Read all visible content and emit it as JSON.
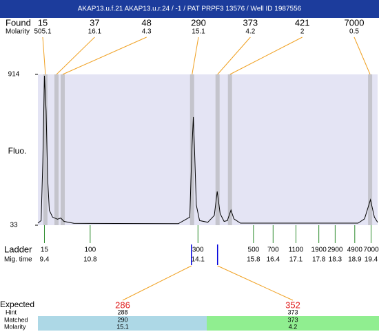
{
  "header": {
    "title": "AKAP13.u.f.21  AKAP13.u.r.24 / -1 / PAT PRPF3 13576 / Well ID 1987556"
  },
  "found": {
    "label": "Found",
    "molarity_label": "Molarity",
    "sizes": [
      15,
      37,
      48,
      290,
      373,
      421,
      7000
    ],
    "molarity": [
      505.1,
      16.1,
      4.3,
      15.1,
      4.2,
      2,
      0.5
    ],
    "times": [
      9.43,
      9.77,
      9.96,
      13.92,
      14.7,
      15.08,
      19.37
    ]
  },
  "chart_data": {
    "type": "line",
    "ylabel": "Fluo.",
    "color": "#000000",
    "band_color": "#e4e4f4",
    "ylim": [
      33,
      914
    ],
    "yticks": [
      33,
      914
    ],
    "xlim": [
      9.2,
      19.6
    ],
    "x": [
      9.2,
      9.3,
      9.35,
      9.4,
      9.45,
      9.5,
      9.55,
      9.65,
      9.8,
      9.9,
      10.0,
      10.3,
      13.5,
      13.85,
      13.92,
      13.96,
      14.0,
      14.05,
      14.15,
      14.4,
      14.6,
      14.69,
      14.78,
      14.9,
      15.0,
      15.11,
      15.2,
      15.4,
      19.0,
      19.2,
      19.38,
      19.5,
      19.6
    ],
    "values": [
      45,
      60,
      400,
      906,
      700,
      300,
      120,
      80,
      68,
      75,
      55,
      44,
      42,
      80,
      500,
      665,
      450,
      150,
      60,
      50,
      90,
      230,
      100,
      55,
      60,
      121,
      70,
      45,
      45,
      70,
      182,
      80,
      50
    ]
  },
  "ladder": {
    "label": "Ladder",
    "time_label": "Mig. time",
    "sizes": [
      15,
      100,
      300,
      500,
      700,
      1100,
      1900,
      2900,
      4900,
      7000
    ],
    "times": [
      9.4,
      10.8,
      14.1,
      15.8,
      16.4,
      17.1,
      17.8,
      18.3,
      18.9,
      19.4
    ]
  },
  "expected": {
    "label": "Expected",
    "hint_label": "Hint",
    "matched_label": "Matched",
    "molarity_label": "Molarity",
    "values": [
      286,
      352
    ],
    "hint": [
      288,
      373
    ],
    "matched": [
      290,
      373
    ],
    "molarity": [
      15.1,
      4.2
    ],
    "match_times": [
      13.9,
      14.7
    ]
  }
}
